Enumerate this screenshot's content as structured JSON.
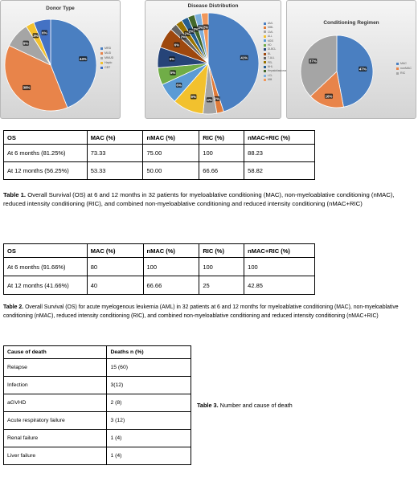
{
  "chart_data": [
    {
      "type": "pie",
      "title": "Donor Type",
      "categories": [
        "MRD",
        "MUD",
        "MMUD",
        "Haplo",
        "CBT"
      ],
      "values": [
        44,
        38,
        9,
        3,
        6
      ],
      "slice_labels": [
        "44%",
        "38%",
        "9%",
        "3%",
        "6%"
      ],
      "colors": [
        "#4a7fc1",
        "#e8844a",
        "#a5a5a5",
        "#f2c12e",
        "#4472c4"
      ],
      "legend": "right"
    },
    {
      "type": "pie",
      "title": "Disease Distribution",
      "categories": [
        "AML",
        "MML",
        "CML",
        "ALL",
        "MDS",
        "HD",
        "DLBCL",
        "BL",
        "T-ALL",
        "PEL",
        "NHL",
        "Hepatoblastoma",
        "LCL",
        "MM"
      ],
      "values": [
        41,
        2,
        4,
        9,
        6,
        5,
        6,
        6,
        2,
        2,
        2,
        2,
        2,
        2
      ],
      "slice_labels": [
        "41%",
        "2%",
        "4%",
        "9%",
        "6%",
        "5%",
        "6%",
        "6%",
        "2%",
        "2%",
        "2%",
        "2%",
        "2%",
        "2%"
      ],
      "colors": [
        "#4a7fc1",
        "#e07b39",
        "#a5a5a5",
        "#f2c12e",
        "#5b9bd5",
        "#70ad47",
        "#264478",
        "#9e480e",
        "#636363",
        "#997300",
        "#255e91",
        "#43682b",
        "#7cafdd",
        "#f1975a"
      ],
      "legend": "right"
    },
    {
      "type": "pie",
      "title": "Conditioning Regimen",
      "categories": [
        "MAC",
        "nonMAC",
        "RIC"
      ],
      "values": [
        47,
        16,
        37
      ],
      "slice_labels": [
        "47%",
        "16%",
        "37%"
      ],
      "colors": [
        "#4a7fc1",
        "#e8844a",
        "#a5a5a5"
      ],
      "legend": "right"
    }
  ],
  "table1": {
    "header": [
      "OS",
      "MAC (%)",
      "nMAC (%)",
      "RIC (%)",
      "nMAC+RIC (%)"
    ],
    "rows": [
      [
        "At 6 months (81.25%)",
        "73.33",
        "75.00",
        "100",
        "88.23"
      ],
      [
        "At 12 months (56.25%)",
        "53.33",
        "50.00",
        "66.66",
        "58.82"
      ]
    ],
    "caption_bold": "Table 1.",
    "caption_text": " Overall Survival (OS) at 6 and 12 months in 32 patients for myeloablative conditioning (MAC), non-myeloablative conditioning (nMAC), reduced intensity conditioning (RIC), and combined non-myeloablative conditioning and reduced intensity conditioning (nMAC+RIC)"
  },
  "table2": {
    "header": [
      "OS",
      "MAC (%)",
      "nMAC (%)",
      "RIC (%)",
      "nMAC+RIC (%)"
    ],
    "rows": [
      [
        "At 6 months (91.66%)",
        "80",
        "100",
        "100",
        "100"
      ],
      [
        "At 12 months (41.66%)",
        "40",
        "66.66",
        "25",
        "42.85"
      ]
    ],
    "caption_bold": "Table 2.",
    "caption_text": " Overall Survival (OS) for acute myelogenous leukemia (AML) in 32 patients at 6 and 12 months for myeloablative conditioning (MAC), non-myeloablative conditioning (nMAC), reduced intensity conditioning (RIC), and combined non-myeloablative conditioning and reduced intensity conditioning (nMAC+RIC)"
  },
  "table3": {
    "header": [
      "Cause of death",
      "Deaths n (%)"
    ],
    "rows": [
      [
        "Relapse",
        "15 (60)"
      ],
      [
        "Infection",
        "3(12)"
      ],
      [
        "aGVHD",
        "2 (8)"
      ],
      [
        "Acute respiratory failure",
        "3 (12)"
      ],
      [
        "Renal failure",
        "1 (4)"
      ],
      [
        "Liver failure",
        "1 (4)"
      ]
    ],
    "caption_bold": "Table 3.",
    "caption_text": " Number and cause of death"
  }
}
